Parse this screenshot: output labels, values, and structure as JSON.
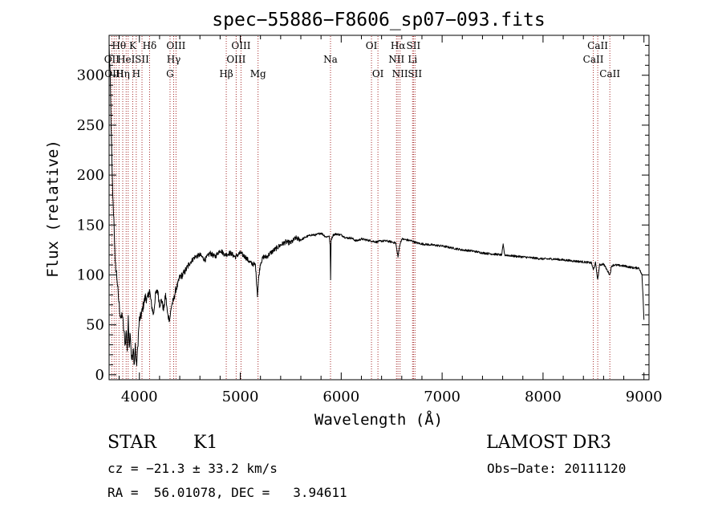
{
  "chart_data": {
    "type": "line",
    "title": "spec−55886−F8606_sp07−093.fits",
    "xlabel": "Wavelength (Å)",
    "ylabel": "Flux (relative)",
    "xlim": [
      3700,
      9050
    ],
    "ylim": [
      -5,
      340
    ],
    "x_ticks": [
      4000,
      5000,
      6000,
      7000,
      8000,
      9000
    ],
    "y_ticks": [
      0,
      50,
      100,
      150,
      200,
      250,
      300
    ],
    "series": [
      {
        "name": "flux",
        "x": [
          3700,
          3710,
          3720,
          3730,
          3740,
          3750,
          3760,
          3770,
          3780,
          3790,
          3800,
          3810,
          3820,
          3830,
          3840,
          3850,
          3860,
          3870,
          3880,
          3890,
          3900,
          3910,
          3920,
          3930,
          3940,
          3950,
          3960,
          3970,
          3980,
          3990,
          4000,
          4020,
          4040,
          4060,
          4080,
          4100,
          4120,
          4140,
          4160,
          4180,
          4200,
          4220,
          4240,
          4260,
          4280,
          4300,
          4320,
          4340,
          4360,
          4380,
          4400,
          4430,
          4460,
          4500,
          4550,
          4600,
          4650,
          4700,
          4750,
          4800,
          4850,
          4900,
          4950,
          5000,
          5050,
          5100,
          5150,
          5170,
          5185,
          5200,
          5230,
          5260,
          5300,
          5350,
          5400,
          5450,
          5500,
          5550,
          5600,
          5650,
          5700,
          5750,
          5800,
          5850,
          5880,
          5890,
          5895,
          5900,
          5920,
          5950,
          6000,
          6050,
          6100,
          6150,
          6200,
          6250,
          6300,
          6350,
          6400,
          6450,
          6500,
          6540,
          6563,
          6580,
          6600,
          6650,
          6700,
          6750,
          6800,
          6900,
          7000,
          7100,
          7200,
          7300,
          7400,
          7500,
          7590,
          7605,
          7620,
          7700,
          7800,
          7900,
          8000,
          8100,
          8200,
          8300,
          8400,
          8480,
          8498,
          8520,
          8542,
          8560,
          8600,
          8662,
          8680,
          8700,
          8800,
          8900,
          8950,
          8980,
          8990,
          9000
        ],
        "y": [
          330,
          300,
          250,
          200,
          170,
          150,
          110,
          105,
          95,
          80,
          70,
          60,
          55,
          62,
          50,
          40,
          30,
          45,
          25,
          55,
          30,
          45,
          20,
          15,
          25,
          10,
          30,
          8,
          20,
          40,
          55,
          60,
          70,
          78,
          75,
          85,
          70,
          60,
          80,
          85,
          70,
          75,
          65,
          80,
          60,
          55,
          70,
          75,
          85,
          90,
          98,
          100,
          105,
          112,
          118,
          120,
          115,
          122,
          118,
          125,
          120,
          122,
          118,
          122,
          118,
          112,
          110,
          80,
          100,
          112,
          118,
          118,
          122,
          126,
          130,
          133,
          132,
          137,
          135,
          138,
          140,
          140,
          142,
          138,
          139,
          130,
          95,
          135,
          140,
          141,
          140,
          137,
          137,
          134,
          136,
          135,
          134,
          133,
          134,
          134,
          133,
          132,
          118,
          130,
          136,
          135,
          134,
          132,
          131,
          130,
          129,
          127,
          125,
          124,
          122,
          121,
          120,
          130,
          120,
          119,
          118,
          117,
          116,
          116,
          115,
          114,
          113,
          112,
          105,
          112,
          95,
          110,
          111,
          100,
          109,
          110,
          109,
          107,
          107,
          100,
          80,
          55
        ]
      }
    ],
    "line_marks": [
      {
        "wl": 3727,
        "labels": [
          "OII"
        ]
      },
      {
        "wl": 3750,
        "labels": [
          "OIII"
        ]
      },
      {
        "wl": 3771,
        "labels": [
          ""
        ]
      },
      {
        "wl": 3798,
        "labels": [
          "Hθ"
        ]
      },
      {
        "wl": 3835,
        "labels": [
          "Hη"
        ]
      },
      {
        "wl": 3869,
        "labels": [
          "HeI"
        ]
      },
      {
        "wl": 3889,
        "labels": [
          ""
        ]
      },
      {
        "wl": 3934,
        "labels": [
          "K"
        ]
      },
      {
        "wl": 3969,
        "labels": [
          "H"
        ]
      },
      {
        "wl": 4026,
        "labels": [
          "SII"
        ]
      },
      {
        "wl": 4101,
        "labels": [
          "Hδ"
        ]
      },
      {
        "wl": 4304,
        "labels": [
          "G"
        ]
      },
      {
        "wl": 4340,
        "labels": [
          "Hγ"
        ]
      },
      {
        "wl": 4363,
        "labels": [
          "OIII"
        ]
      },
      {
        "wl": 4861,
        "labels": [
          "Hβ"
        ]
      },
      {
        "wl": 4959,
        "labels": [
          "OIII"
        ]
      },
      {
        "wl": 5007,
        "labels": [
          "OIII"
        ]
      },
      {
        "wl": 5176,
        "labels": [
          "Mg"
        ]
      },
      {
        "wl": 5894,
        "labels": [
          "Na"
        ]
      },
      {
        "wl": 6300,
        "labels": [
          "OI"
        ]
      },
      {
        "wl": 6364,
        "labels": [
          "OI"
        ]
      },
      {
        "wl": 6548,
        "labels": [
          "NII"
        ]
      },
      {
        "wl": 6563,
        "labels": [
          "Hα"
        ]
      },
      {
        "wl": 6583,
        "labels": [
          "NII"
        ]
      },
      {
        "wl": 6707,
        "labels": [
          "Li"
        ]
      },
      {
        "wl": 6716,
        "labels": [
          "SII"
        ]
      },
      {
        "wl": 6731,
        "labels": [
          "SII"
        ]
      },
      {
        "wl": 8498,
        "labels": [
          "CaII"
        ]
      },
      {
        "wl": 8542,
        "labels": [
          "CaII"
        ]
      },
      {
        "wl": 8662,
        "labels": [
          "CaII"
        ]
      }
    ],
    "line_label_rows": [
      [
        {
          "text": "Hθ",
          "wl": 3798
        },
        {
          "text": "K",
          "wl": 3934
        },
        {
          "text": "Hδ",
          "wl": 4101
        },
        {
          "text": "OIII",
          "wl": 4363
        },
        {
          "text": "OIII",
          "wl": 5007
        },
        {
          "text": "OI",
          "wl": 6300
        },
        {
          "text": "Hα",
          "wl": 6563
        },
        {
          "text": "SII",
          "wl": 6716
        },
        {
          "text": "CaII",
          "wl": 8542
        }
      ],
      [
        {
          "text": "OII",
          "wl": 3727
        },
        {
          "text": "HeI",
          "wl": 3869
        },
        {
          "text": "SII",
          "wl": 4026
        },
        {
          "text": "Hγ",
          "wl": 4340
        },
        {
          "text": "OIII",
          "wl": 4959
        },
        {
          "text": "Na",
          "wl": 5894
        },
        {
          "text": "NII",
          "wl": 6548
        },
        {
          "text": "Li",
          "wl": 6707
        },
        {
          "text": "CaII",
          "wl": 8498
        }
      ],
      [
        {
          "text": "OIII",
          "wl": 3750
        },
        {
          "text": "Hη",
          "wl": 3835
        },
        {
          "text": "H",
          "wl": 3969
        },
        {
          "text": "G",
          "wl": 4304
        },
        {
          "text": "Hβ",
          "wl": 4861
        },
        {
          "text": "Mg",
          "wl": 5176
        },
        {
          "text": "OI",
          "wl": 6364
        },
        {
          "text": "NII",
          "wl": 6583
        },
        {
          "text": "SII",
          "wl": 6731
        },
        {
          "text": "CaII",
          "wl": 8662
        }
      ]
    ],
    "colors": {
      "spectrum": "#000000",
      "line_marks": "#a52a2a",
      "axes": "#000000"
    },
    "grid": false,
    "legend": "none"
  },
  "info": {
    "object_class": "STAR",
    "subclass": "K1",
    "survey": "LAMOST DR3",
    "redshift": "cz = −21.3 ± 33.2 km/s",
    "obs_date": "Obs−Date: 20111120",
    "coords": "RA =  56.01078, DEC =   3.94611"
  }
}
